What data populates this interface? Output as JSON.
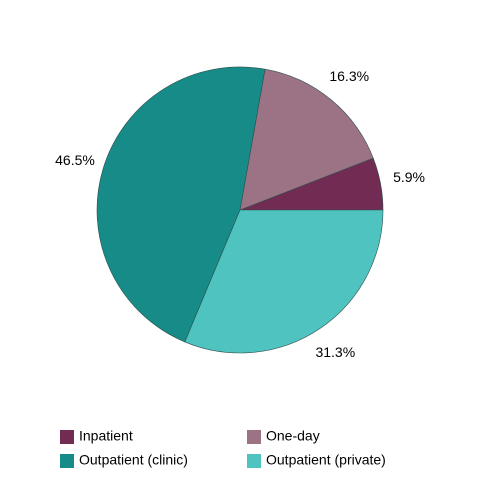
{
  "chart_data": {
    "type": "pie",
    "categories": [
      "Inpatient",
      "One-day",
      "Outpatient (clinic)",
      "Outpatient (private)"
    ],
    "values": [
      5.9,
      16.3,
      46.5,
      31.3
    ],
    "value_labels": [
      "5.9%",
      "16.3%",
      "46.5%",
      "31.3%"
    ],
    "colors": [
      "#722b53",
      "#9c7285",
      "#168b87",
      "#4fc3bf"
    ]
  }
}
